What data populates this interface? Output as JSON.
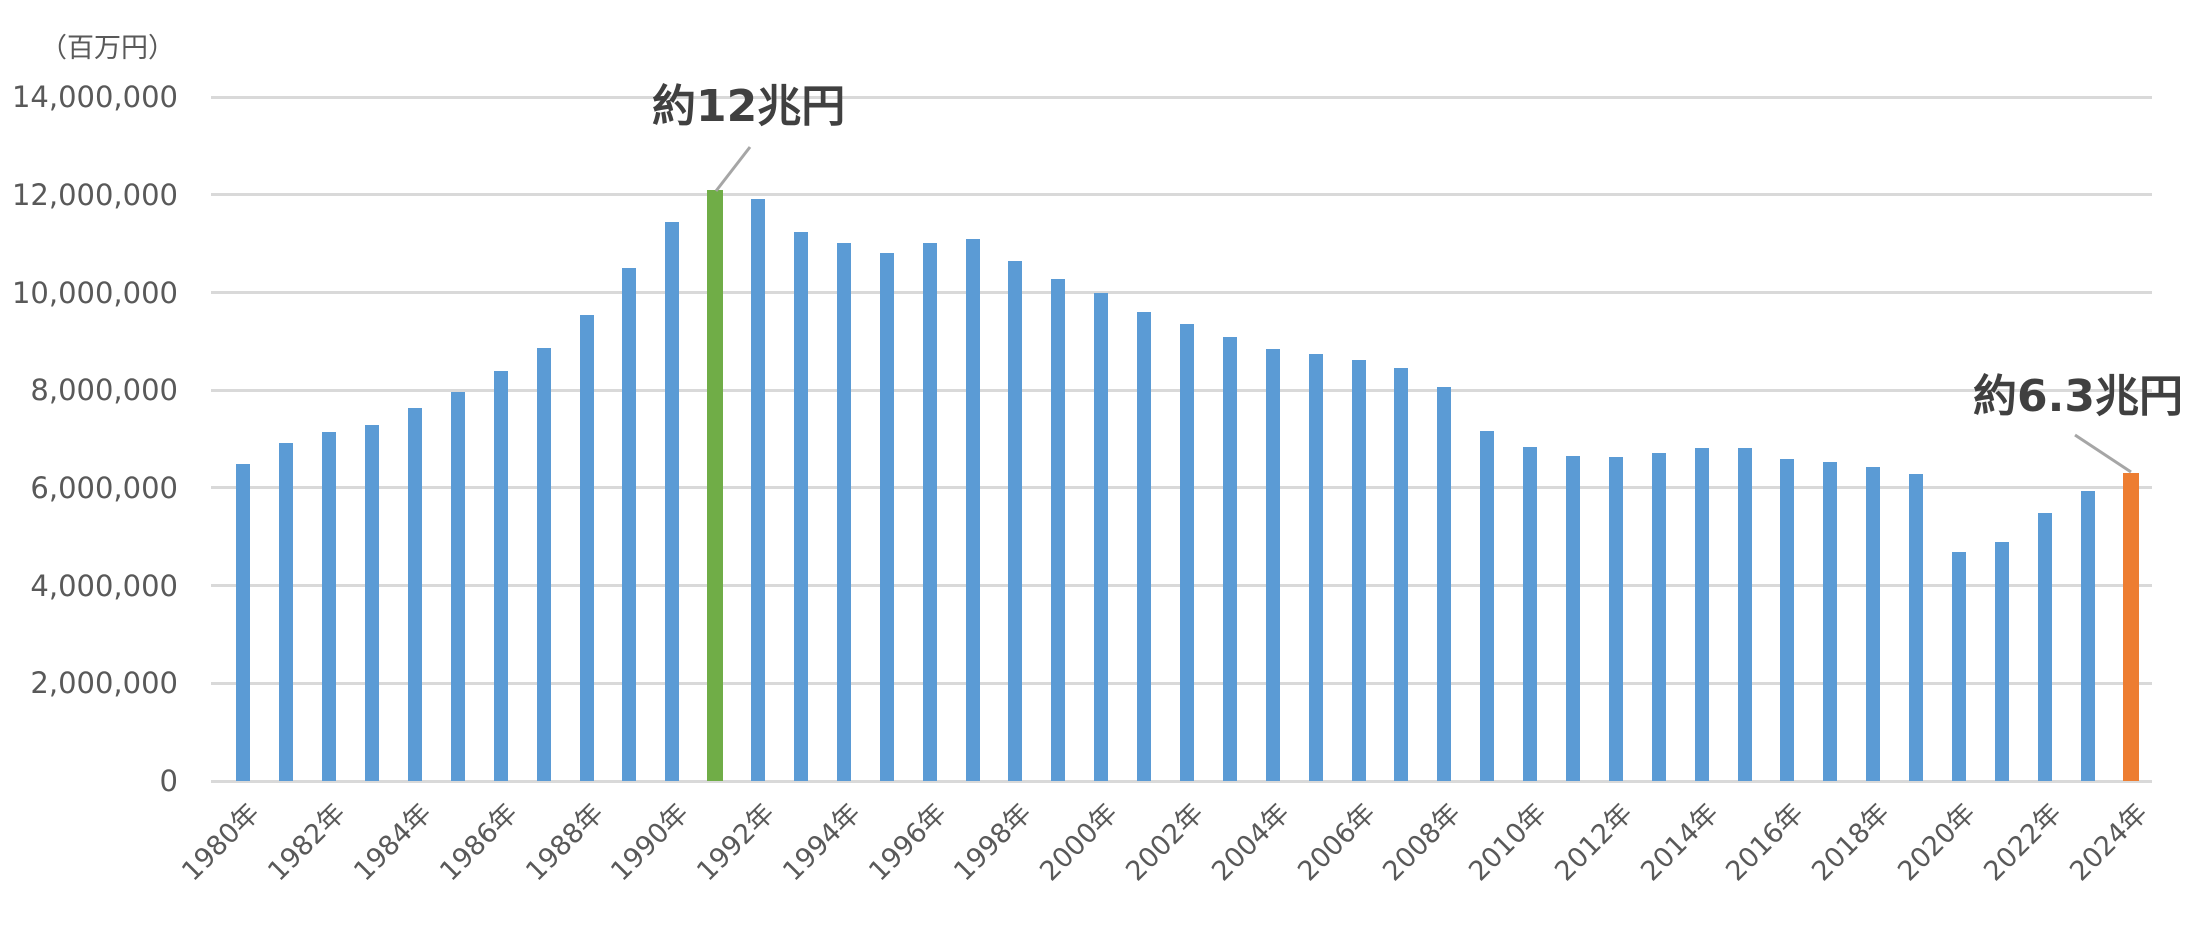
{
  "chart_data": {
    "type": "bar",
    "title": "",
    "xlabel": "",
    "ylabel": "（百万円）",
    "ylim": [
      0,
      14000000
    ],
    "yticks": [
      0,
      2000000,
      4000000,
      6000000,
      8000000,
      10000000,
      12000000,
      14000000
    ],
    "ytick_labels": [
      "0",
      "2,000,000",
      "4,000,000",
      "6,000,000",
      "8,000,000",
      "10,000,000",
      "12,000,000",
      "14,000,000"
    ],
    "grid": true,
    "legend": null,
    "categories": [
      "1980年",
      "1981年",
      "1982年",
      "1983年",
      "1984年",
      "1985年",
      "1986年",
      "1987年",
      "1988年",
      "1989年",
      "1990年",
      "1991年",
      "1992年",
      "1993年",
      "1994年",
      "1995年",
      "1996年",
      "1997年",
      "1998年",
      "1999年",
      "2000年",
      "2001年",
      "2002年",
      "2003年",
      "2004年",
      "2005年",
      "2006年",
      "2007年",
      "2008年",
      "2009年",
      "2010年",
      "2011年",
      "2012年",
      "2013年",
      "2014年",
      "2015年",
      "2016年",
      "2017年",
      "2018年",
      "2019年",
      "2020年",
      "2021年",
      "2022年",
      "2023年",
      "2024年"
    ],
    "visible_xtick_labels": [
      "1980年",
      "1982年",
      "1984年",
      "1986年",
      "1988年",
      "1990年",
      "1992年",
      "1994年",
      "1996年",
      "1998年",
      "2000年",
      "2002年",
      "2004年",
      "2006年",
      "2008年",
      "2010年",
      "2012年",
      "2014年",
      "2016年",
      "2018年",
      "2020年",
      "2022年",
      "2024年"
    ],
    "values": [
      6490000,
      6920000,
      7140000,
      7280000,
      7630000,
      7960000,
      8390000,
      8860000,
      9540000,
      10500000,
      11440000,
      12090000,
      11910000,
      11240000,
      11010000,
      10810000,
      11010000,
      11090000,
      10640000,
      10270000,
      9990000,
      9600000,
      9360000,
      9090000,
      8840000,
      8740000,
      8620000,
      8450000,
      8070000,
      7160000,
      6840000,
      6650000,
      6630000,
      6710000,
      6820000,
      6820000,
      6590000,
      6530000,
      6430000,
      6280000,
      4690000,
      4890000,
      5490000,
      5940000,
      6310000
    ],
    "colors": {
      "default": "#5B9BD5",
      "highlight_peak": "#70AD47",
      "highlight_latest": "#ED7D31",
      "gridline": "#D9D9D9",
      "axis_text": "#595959",
      "annotation_text": "#404040",
      "leader_line": "#A6A6A6"
    },
    "highlights": [
      {
        "category": "1991年",
        "color": "#70AD47",
        "annotation": "約12兆円"
      },
      {
        "category": "2024年",
        "color": "#ED7D31",
        "annotation": "約6.3兆円"
      }
    ]
  },
  "annotations": {
    "peak": "約12兆円",
    "latest": "約6.3兆円"
  },
  "axis": {
    "unit_label": "（百万円）"
  }
}
